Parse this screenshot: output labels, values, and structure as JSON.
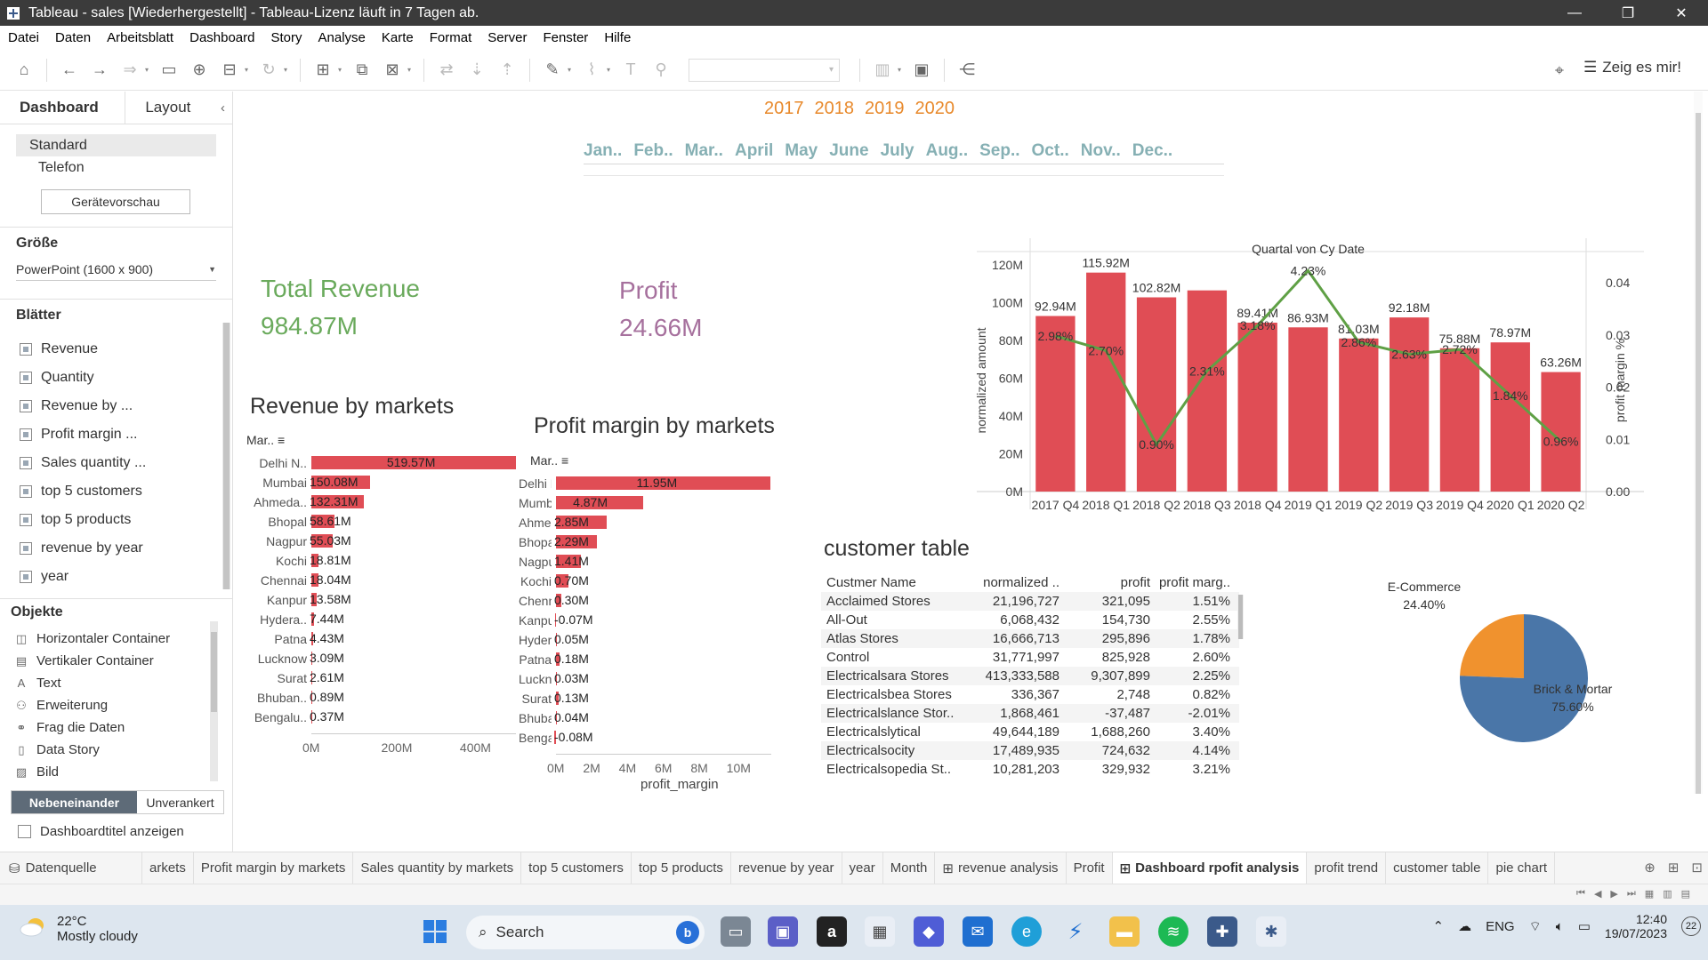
{
  "window": {
    "title": "Tableau - sales [Wiederhergestellt] - Tableau-Lizenz läuft in 7 Tagen ab.",
    "minimize": "—",
    "restore": "❐",
    "close": "✕"
  },
  "menu": [
    "Datei",
    "Daten",
    "Arbeitsblatt",
    "Dashboard",
    "Story",
    "Analyse",
    "Karte",
    "Format",
    "Server",
    "Fenster",
    "Hilfe"
  ],
  "toolbar": {
    "show_me": "Zeig es mir!"
  },
  "left_panel": {
    "tab_dashboard": "Dashboard",
    "tab_layout": "Layout",
    "collapse": "‹",
    "devices": [
      "Standard",
      "Telefon"
    ],
    "device_preview": "Gerätevorschau",
    "size_heading": "Größe",
    "size_value": "PowerPoint (1600 x 900)",
    "sheets_heading": "Blätter",
    "sheets": [
      "Revenue",
      "Quantity",
      "Revenue by ...",
      "Profit margin ...",
      "Sales quantity ...",
      "top 5 customers",
      "top 5 products",
      "revenue by year",
      "year"
    ],
    "objects_heading": "Objekte",
    "objects": [
      {
        "icon": "◫",
        "label": "Horizontaler Container"
      },
      {
        "icon": "▤",
        "label": "Vertikaler Container"
      },
      {
        "icon": "A",
        "label": "Text"
      },
      {
        "icon": "⚇",
        "label": "Erweiterung"
      },
      {
        "icon": "⚭",
        "label": "Frag die Daten"
      },
      {
        "icon": "▯",
        "label": "Data Story"
      },
      {
        "icon": "▨",
        "label": "Bild"
      }
    ],
    "layout_tiled": "Nebeneinander",
    "layout_floating": "Unverankert",
    "show_title": "Dashboardtitel anzeigen"
  },
  "dashboard": {
    "years": [
      "2017",
      "2018",
      "2019",
      "2020"
    ],
    "months": [
      "Jan..",
      "Feb..",
      "Mar..",
      "April",
      "May",
      "June",
      "July",
      "Aug..",
      "Sep..",
      "Oct..",
      "Nov..",
      "Dec.."
    ],
    "total_revenue_label": "Total Revenue",
    "total_revenue_value": "984.87M",
    "profit_label": "Profit",
    "profit_value": "24.66M",
    "colors": {
      "revenue_green": "#6aaa5c",
      "profit_purple": "#a6709d",
      "bar_red": "#e04d55",
      "line_green": "#5fa045",
      "year_orange": "#e8892b",
      "month_teal": "#86b0b4"
    }
  },
  "revenue_by_markets": {
    "title": "Revenue by markets",
    "column_header": "Mar..",
    "rows": [
      {
        "market": "Delhi N..",
        "label": "519.57M",
        "value": 519.57
      },
      {
        "market": "Mumbai",
        "label": "150.08M",
        "value": 150.08
      },
      {
        "market": "Ahmeda..",
        "label": "132.31M",
        "value": 132.31
      },
      {
        "market": "Bhopal",
        "label": "58.61M",
        "value": 58.61
      },
      {
        "market": "Nagpur",
        "label": "55.03M",
        "value": 55.03
      },
      {
        "market": "Kochi",
        "label": "18.81M",
        "value": 18.81
      },
      {
        "market": "Chennai",
        "label": "18.04M",
        "value": 18.04
      },
      {
        "market": "Kanpur",
        "label": "13.58M",
        "value": 13.58
      },
      {
        "market": "Hydera..",
        "label": "7.44M",
        "value": 7.44
      },
      {
        "market": "Patna",
        "label": "4.43M",
        "value": 4.43
      },
      {
        "market": "Lucknow",
        "label": "3.09M",
        "value": 3.09
      },
      {
        "market": "Surat",
        "label": "2.61M",
        "value": 2.61
      },
      {
        "market": "Bhuban..",
        "label": "0.89M",
        "value": 0.89
      },
      {
        "market": "Bengalu..",
        "label": "0.37M",
        "value": 0.37
      }
    ],
    "axis_max": 520,
    "ticks": [
      {
        "label": "0M",
        "value": 0
      },
      {
        "label": "200M",
        "value": 200
      },
      {
        "label": "400M",
        "value": 400
      }
    ]
  },
  "profit_by_markets": {
    "title": "Profit margin by markets",
    "column_header": "Mar..",
    "axis_title": "profit_margin",
    "rows": [
      {
        "market": "Delhi N..",
        "label": "11.95M",
        "value": 11.95
      },
      {
        "market": "Mumbai",
        "label": "4.87M",
        "value": 4.87
      },
      {
        "market": "Ahmeda..",
        "label": "2.85M",
        "value": 2.85
      },
      {
        "market": "Bhopal",
        "label": "2.29M",
        "value": 2.29
      },
      {
        "market": "Nagpur",
        "label": "1.41M",
        "value": 1.41
      },
      {
        "market": "Kochi",
        "label": "0.70M",
        "value": 0.7
      },
      {
        "market": "Chennai",
        "label": "0.30M",
        "value": 0.3
      },
      {
        "market": "Kanpur",
        "label": "-0.07M",
        "value": -0.07
      },
      {
        "market": "Hydera..",
        "label": "0.05M",
        "value": 0.05
      },
      {
        "market": "Patna",
        "label": "0.18M",
        "value": 0.18
      },
      {
        "market": "Lucknow",
        "label": "0.03M",
        "value": 0.03
      },
      {
        "market": "Surat",
        "label": "0.13M",
        "value": 0.13
      },
      {
        "market": "Bhuban..",
        "label": "0.04M",
        "value": 0.04
      },
      {
        "market": "Bengalu..",
        "label": "-0.08M",
        "value": -0.08
      }
    ],
    "axis_max": 12,
    "ticks": [
      {
        "label": "0M",
        "value": 0
      },
      {
        "label": "2M",
        "value": 2
      },
      {
        "label": "4M",
        "value": 4
      },
      {
        "label": "6M",
        "value": 6
      },
      {
        "label": "8M",
        "value": 8
      },
      {
        "label": "10M",
        "value": 10
      }
    ]
  },
  "chart_data": {
    "type": "bar",
    "title": "Quartal von Cy Date",
    "ylabel": "normalized amount",
    "y2label": "profit margin %",
    "categories": [
      "2017 Q4",
      "2018 Q1",
      "2018 Q2",
      "2018 Q3",
      "2018 Q4",
      "2019 Q1",
      "2019 Q2",
      "2019 Q3",
      "2019 Q4",
      "2020 Q1",
      "2020 Q2"
    ],
    "series": [
      {
        "name": "normalized amount",
        "kind": "bar",
        "values": [
          92.94,
          115.92,
          102.82,
          106.5,
          89.41,
          86.93,
          81.03,
          92.18,
          75.88,
          78.97,
          63.26
        ],
        "labels": [
          "92.94M",
          "115.92M",
          "102.82M",
          "",
          "89.41M",
          "86.93M",
          "81.03M",
          "92.18M",
          "75.88M",
          "78.97M",
          "63.26M"
        ]
      },
      {
        "name": "profit margin %",
        "kind": "line",
        "values": [
          0.0298,
          0.027,
          0.009,
          0.0231,
          0.0318,
          0.0423,
          0.0286,
          0.0263,
          0.0272,
          0.0184,
          0.0096
        ],
        "labels": [
          "2.98%",
          "2.70%",
          "0.90%",
          "2.31%",
          "3.18%",
          "4.23%",
          "2.86%",
          "2.63%",
          "2.72%",
          "1.84%",
          "0.96%"
        ]
      }
    ],
    "ylim": [
      0,
      120
    ],
    "y2lim": [
      0,
      0.04
    ],
    "y_ticks": [
      {
        "label": "0M",
        "value": 0
      },
      {
        "label": "20M",
        "value": 20
      },
      {
        "label": "40M",
        "value": 40
      },
      {
        "label": "60M",
        "value": 60
      },
      {
        "label": "80M",
        "value": 80
      },
      {
        "label": "100M",
        "value": 100
      },
      {
        "label": "120M",
        "value": 120
      }
    ],
    "y2_ticks": [
      {
        "label": "0.00",
        "value": 0
      },
      {
        "label": "0.01",
        "value": 0.01
      },
      {
        "label": "0.02",
        "value": 0.02
      },
      {
        "label": "0.03",
        "value": 0.03
      },
      {
        "label": "0.04",
        "value": 0.04
      }
    ]
  },
  "customer_table": {
    "title": "customer table",
    "headers": [
      "Custmer Name",
      "normalized ..",
      "profit",
      "profit marg.."
    ],
    "rows": [
      [
        "Acclaimed Stores",
        "21,196,727",
        "321,095",
        "1.51%"
      ],
      [
        "All-Out",
        "6,068,432",
        "154,730",
        "2.55%"
      ],
      [
        "Atlas Stores",
        "16,666,713",
        "295,896",
        "1.78%"
      ],
      [
        "Control",
        "31,771,997",
        "825,928",
        "2.60%"
      ],
      [
        "Electricalsara Stores",
        "413,333,588",
        "9,307,899",
        "2.25%"
      ],
      [
        "Electricalsbea Stores",
        "336,367",
        "2,748",
        "0.82%"
      ],
      [
        "Electricalslance Stor..",
        "1,868,461",
        "-37,487",
        "-2.01%"
      ],
      [
        "Electricalslytical",
        "49,644,189",
        "1,688,260",
        "3.40%"
      ],
      [
        "Electricalsocity",
        "17,489,935",
        "724,632",
        "4.14%"
      ],
      [
        "Electricalsopedia St..",
        "10,281,203",
        "329,932",
        "3.21%"
      ]
    ]
  },
  "pie": {
    "slices": [
      {
        "name": "E-Commerce",
        "pct_label": "24.40%",
        "value": 24.4,
        "color": "#f0922e"
      },
      {
        "name": "Brick & Mortar",
        "pct_label": "75.60%",
        "value": 75.6,
        "color": "#4a76a8"
      }
    ]
  },
  "sheet_tabs": [
    "Datenquelle",
    "arkets",
    "Profit margin by markets",
    "Sales quantity by markets",
    "top 5 customers",
    "top 5 products",
    "revenue by year",
    "year",
    "Month",
    "revenue analysis",
    "Profit",
    "Dashboard rpofit analysis",
    "profit trend",
    "customer table",
    "pie chart"
  ],
  "taskbar": {
    "temp": "22°C",
    "weather": "Mostly cloudy",
    "search": "Search",
    "lang": "ENG",
    "time": "12:40",
    "date": "19/07/2023",
    "notif": "22"
  }
}
